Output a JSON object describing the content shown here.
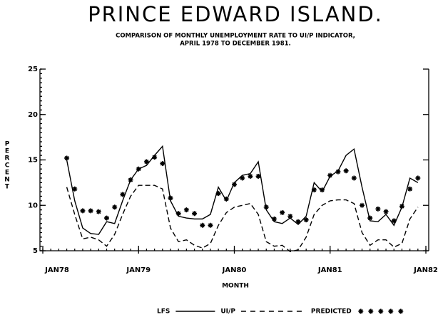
{
  "chart_data": {
    "type": "line",
    "title": "PRINCE EDWARD ISLAND.",
    "subtitle": [
      "COMPARISON OF MONTHLY UNEMPLOYMENT RATE TO UI/P INDICATOR,",
      "APRIL 1978 TO DECEMBER 1981."
    ],
    "x_label": "MONTH",
    "y_label": "PERCENT",
    "xlim": [
      0,
      48
    ],
    "xticks": [
      {
        "value": 0,
        "label": "JAN78"
      },
      {
        "value": 12,
        "label": "JAN79"
      },
      {
        "value": 24,
        "label": "JAN80"
      },
      {
        "value": 36,
        "label": "JAN81"
      },
      {
        "value": 48,
        "label": "JAN82"
      }
    ],
    "ylim": [
      5,
      25
    ],
    "yticks": [
      5,
      10,
      15,
      20,
      25
    ],
    "x": [
      3,
      4,
      5,
      6,
      7,
      8,
      9,
      10,
      11,
      12,
      13,
      14,
      15,
      16,
      17,
      18,
      19,
      20,
      21,
      22,
      23,
      24,
      25,
      26,
      27,
      28,
      29,
      30,
      31,
      32,
      33,
      34,
      35,
      36,
      37,
      38,
      39,
      40,
      41,
      42,
      43,
      44,
      45,
      46,
      47
    ],
    "series": [
      {
        "name": "LFS",
        "style": "solid",
        "color": "#000000",
        "values": [
          15.0,
          10.5,
          7.5,
          6.9,
          6.8,
          8.2,
          8.0,
          10.5,
          12.8,
          14.0,
          14.4,
          15.5,
          16.5,
          10.5,
          8.8,
          8.6,
          8.5,
          8.5,
          9.0,
          12.0,
          10.5,
          12.5,
          13.3,
          13.5,
          14.8,
          9.5,
          8.2,
          8.0,
          8.6,
          7.9,
          8.8,
          12.5,
          11.5,
          13.2,
          13.8,
          15.5,
          16.2,
          12.0,
          8.3,
          8.2,
          9.0,
          7.8,
          9.8,
          13.0,
          12.5
        ]
      },
      {
        "name": "UI/P",
        "style": "dashed",
        "color": "#000000",
        "values": [
          12.0,
          9.0,
          6.3,
          6.5,
          6.2,
          5.5,
          6.8,
          9.0,
          11.0,
          12.2,
          12.2,
          12.2,
          11.8,
          7.5,
          6.0,
          6.2,
          5.6,
          5.3,
          5.8,
          7.8,
          9.2,
          9.8,
          10.0,
          10.2,
          9.0,
          6.0,
          5.5,
          5.6,
          4.9,
          5.1,
          6.5,
          9.0,
          10.0,
          10.5,
          10.6,
          10.6,
          10.2,
          7.0,
          5.6,
          6.2,
          6.2,
          5.4,
          5.8,
          8.5,
          9.8
        ]
      },
      {
        "name": "PREDICTED",
        "style": "markers",
        "color": "#000000",
        "values": [
          15.2,
          11.8,
          9.4,
          9.4,
          9.3,
          8.6,
          9.8,
          11.2,
          12.8,
          14.0,
          14.8,
          15.3,
          14.6,
          10.8,
          9.1,
          9.5,
          9.1,
          7.8,
          7.8,
          11.3,
          10.7,
          12.3,
          13.0,
          13.2,
          13.2,
          9.8,
          8.5,
          9.2,
          8.8,
          8.2,
          8.4,
          11.7,
          11.7,
          13.3,
          13.7,
          13.8,
          13.0,
          10.0,
          8.6,
          9.6,
          9.3,
          8.3,
          9.9,
          11.8,
          13.0
        ]
      }
    ]
  }
}
